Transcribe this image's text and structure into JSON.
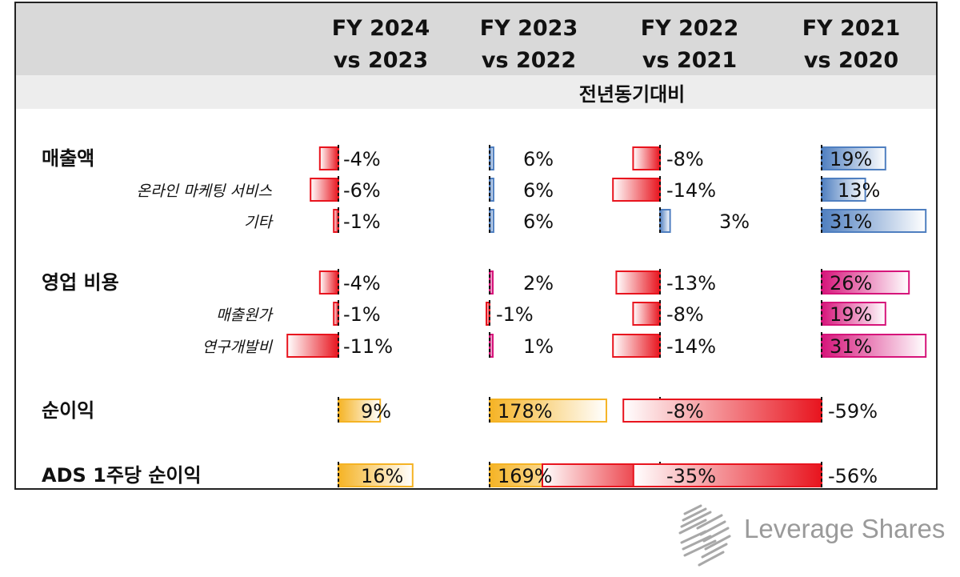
{
  "chart_data": {
    "type": "bar",
    "column_headers": [
      {
        "line1": "FY 2024",
        "line2": "vs 2023"
      },
      {
        "line1": "FY 2023",
        "line2": "vs 2022"
      },
      {
        "line1": "FY 2022",
        "line2": "vs 2021"
      },
      {
        "line1": "FY 2021",
        "line2": "vs 2020"
      }
    ],
    "subheader": "전년동기대비",
    "rows": [
      {
        "label": "매출액",
        "style": "main",
        "group": "revenue",
        "values": [
          -4,
          6,
          -8,
          19
        ],
        "display": [
          "-4%",
          "6%",
          "-8%",
          "19%"
        ]
      },
      {
        "label": "온라인 마케팅 서비스",
        "style": "sub",
        "group": "revenue",
        "values": [
          -6,
          6,
          -14,
          13
        ],
        "display": [
          "-6%",
          "6%",
          "-14%",
          "13%"
        ]
      },
      {
        "label": "기타",
        "style": "sub",
        "group": "revenue",
        "values": [
          -1,
          6,
          3,
          31
        ],
        "display": [
          "-1%",
          "6%",
          "3%",
          "31%"
        ]
      },
      {
        "label": "영업 비용",
        "style": "main",
        "group": "opex",
        "values": [
          -4,
          2,
          -13,
          26
        ],
        "display": [
          "-4%",
          "2%",
          "-13%",
          "26%"
        ]
      },
      {
        "label": "매출원가",
        "style": "sub",
        "group": "opex",
        "values": [
          -1,
          -1,
          -8,
          19
        ],
        "display": [
          "-1%",
          "-1%",
          "-8%",
          "19%"
        ]
      },
      {
        "label": "연구개발비",
        "style": "sub",
        "group": "opex",
        "values": [
          -11,
          1,
          -14,
          31
        ],
        "display": [
          "-11%",
          "1%",
          "-14%",
          "31%"
        ]
      },
      {
        "label": "순이익",
        "style": "main",
        "group": "income",
        "values": [
          9,
          178,
          -8,
          -59
        ],
        "display": [
          "9%",
          "178%",
          "-8%",
          "-59%"
        ]
      },
      {
        "label": "ADS 1주당 순이익",
        "style": "main",
        "group": "income",
        "values": [
          16,
          169,
          -35,
          -56
        ],
        "display": [
          "16%",
          "169%",
          "-35%",
          "-56%"
        ]
      }
    ],
    "colors": {
      "negative": "#e8141e",
      "revenue_positive": "#4f7fc0",
      "opex_positive": "#d6147a",
      "income_positive": "#f5b324"
    }
  },
  "brand": {
    "name": "Leverage Shares"
  }
}
